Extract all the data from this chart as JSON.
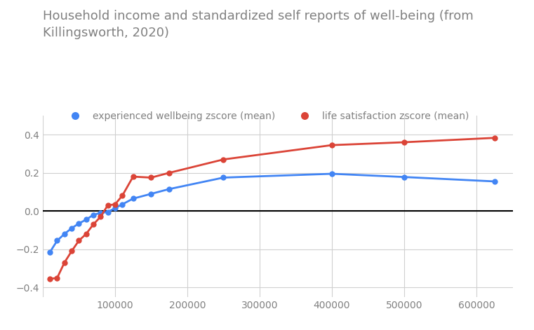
{
  "title": "Household income and standardized self reports of well-being (from\nKillingsworth, 2020)",
  "title_fontsize": 13,
  "title_color": "#808080",
  "background_color": "#ffffff",
  "grid_color": "#d0d0d0",
  "zero_line_color": "#000000",
  "experienced_wellbeing": {
    "label": "experienced wellbeing zscore (mean)",
    "color": "#4285f4",
    "x": [
      10000,
      20000,
      30000,
      40000,
      50000,
      60000,
      70000,
      80000,
      90000,
      100000,
      110000,
      125000,
      150000,
      175000,
      250000,
      400000,
      500000,
      625000
    ],
    "y": [
      -0.215,
      -0.155,
      -0.12,
      -0.09,
      -0.065,
      -0.045,
      -0.02,
      -0.01,
      -0.005,
      0.015,
      0.035,
      0.065,
      0.09,
      0.115,
      0.175,
      0.195,
      0.178,
      0.155
    ]
  },
  "life_satisfaction": {
    "label": "life satisfaction zscore (mean)",
    "color": "#db4437",
    "x": [
      10000,
      20000,
      30000,
      40000,
      50000,
      60000,
      70000,
      80000,
      90000,
      100000,
      110000,
      125000,
      150000,
      175000,
      250000,
      400000,
      500000,
      625000
    ],
    "y": [
      -0.355,
      -0.35,
      -0.27,
      -0.21,
      -0.155,
      -0.12,
      -0.07,
      -0.03,
      0.03,
      0.035,
      0.08,
      0.18,
      0.175,
      0.2,
      0.27,
      0.345,
      0.36,
      0.383
    ]
  },
  "xlim": [
    0,
    650000
  ],
  "ylim": [
    -0.45,
    0.5
  ],
  "xticks": [
    0,
    100000,
    200000,
    300000,
    400000,
    500000,
    600000
  ],
  "yticks": [
    -0.4,
    -0.2,
    0.0,
    0.2,
    0.4
  ],
  "marker_size": 5,
  "line_width": 2.0,
  "tick_fontsize": 10,
  "tick_color": "#808080",
  "legend_fontsize": 10
}
